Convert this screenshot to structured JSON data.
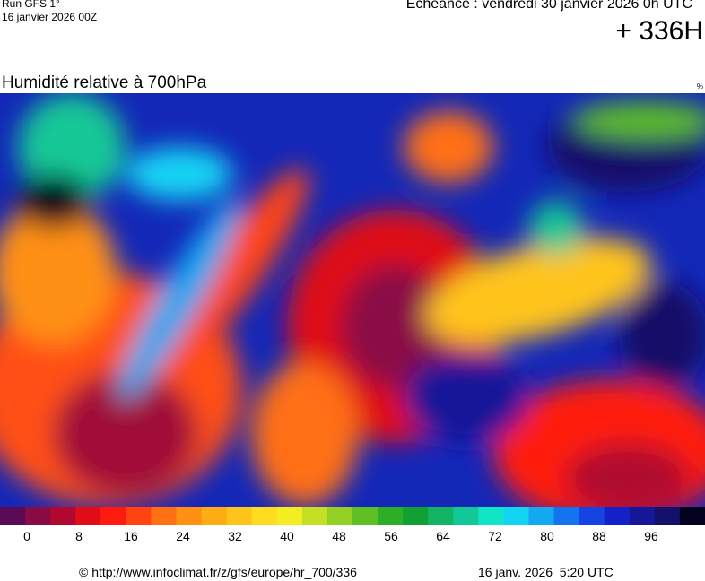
{
  "header": {
    "run": "Run GFS 1°",
    "run_date": "16 janvier 2026 00Z",
    "valid": "Echéance : vendredi 30 janvier 2026 0h UTC",
    "lead": "+ 336H"
  },
  "map": {
    "title": "Humidité relative à 700hPa",
    "unit": "%"
  },
  "colorbar": {
    "colors": [
      "#5a0a55",
      "#8a0a45",
      "#b0082e",
      "#e00c18",
      "#ff1a10",
      "#ff4412",
      "#ff7012",
      "#ff9012",
      "#ffac14",
      "#ffc41c",
      "#ffdc20",
      "#f2ee22",
      "#c4e024",
      "#94d024",
      "#5ec024",
      "#2eae26",
      "#12a034",
      "#12b464",
      "#12c896",
      "#12e4c8",
      "#14d4f4",
      "#14a8f2",
      "#1474f0",
      "#1444e4",
      "#1420c8",
      "#141898",
      "#121068",
      "#02021e"
    ],
    "ticks": [
      0,
      8,
      16,
      24,
      32,
      40,
      48,
      56,
      64,
      72,
      80,
      88,
      96
    ]
  },
  "footer": {
    "url": "© http://www.infoclimat.fr/z/gfs/europe/hr_700/336",
    "stamp": "16 janv. 2026  5:20 UTC"
  }
}
